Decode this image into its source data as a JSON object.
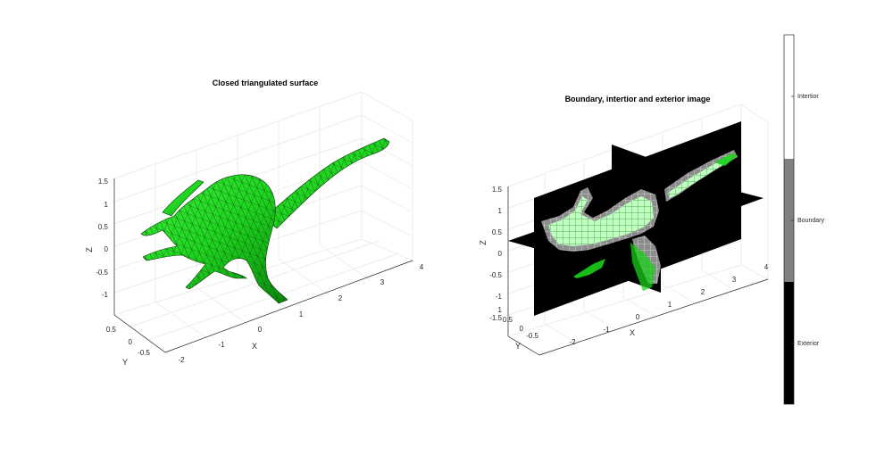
{
  "chart_data": [
    {
      "type": "surface3d",
      "title": "Closed triangulated surface",
      "xlabel": "X",
      "ylabel": "Y",
      "zlabel": "Z",
      "xticks": [
        "-2",
        "-1",
        "0",
        "1",
        "2",
        "3",
        "4"
      ],
      "yticks": [
        "-0.5",
        "0",
        "0.5"
      ],
      "zticks": [
        "-1",
        "-0.5",
        "0",
        "0.5",
        "1",
        "1.5"
      ],
      "xlim": [
        -2,
        4
      ],
      "ylim": [
        -0.8,
        0.8
      ],
      "zlim": [
        -1.3,
        1.5
      ],
      "grid": true,
      "colors": {
        "face": "#19d019",
        "edge": "#0b3a0b"
      }
    },
    {
      "type": "slices3d",
      "title": "Boundary, intertior and exterior image",
      "xlabel": "X",
      "ylabel": "Y",
      "zlabel": "Z",
      "xticks": [
        "-2",
        "-1",
        "0",
        "1",
        "2",
        "3",
        "4"
      ],
      "yticks": [
        "-0.5",
        "0",
        "0.5",
        "1"
      ],
      "zticks": [
        "-1.5",
        "-1",
        "-0.5",
        "0",
        "0.5",
        "1",
        "1.5"
      ],
      "xlim": [
        -2,
        4
      ],
      "ylim": [
        -0.8,
        1.2
      ],
      "zlim": [
        -1.6,
        1.5
      ],
      "grid": true,
      "colors": {
        "exterior": "#000000",
        "boundary": "#808080",
        "interior": "#ffffff",
        "overlay": "#19d019"
      }
    }
  ],
  "colorbar": {
    "labels": [
      "Intertior",
      "Boundary",
      "Exterior"
    ],
    "colors": [
      "#ffffff",
      "#808080",
      "#000000"
    ]
  }
}
